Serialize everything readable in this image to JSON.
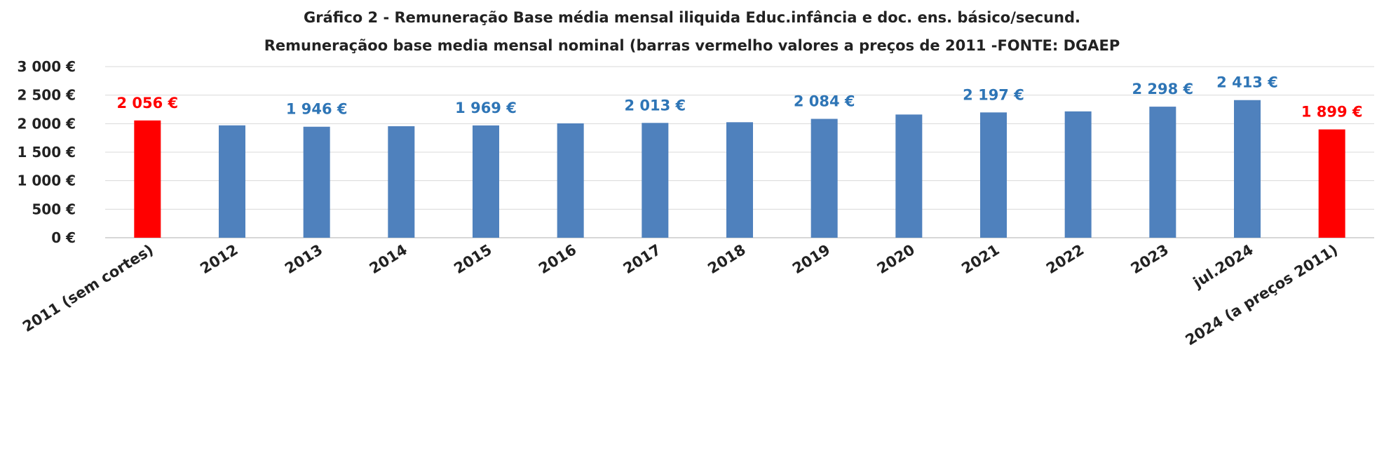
{
  "chart_data": {
    "type": "bar",
    "title": "Gráfico 2 - Remuneração  Base média mensal iliquida Educ.infância  e doc.  ens. básico/secund.",
    "subtitle": "Remuneraçãoo  base media mensal nominal (barras  vermelho valores a preços de 2011  -FONTE: DGAEP",
    "xlabel": "",
    "ylabel": "",
    "ylim": [
      0,
      3000
    ],
    "grid": true,
    "legend": "none",
    "y_ticks": [
      {
        "value": 0,
        "label": "0 €"
      },
      {
        "value": 500,
        "label": "500 €"
      },
      {
        "value": 1000,
        "label": "1 000 €"
      },
      {
        "value": 1500,
        "label": "1 500 €"
      },
      {
        "value": 2000,
        "label": "2 000 €"
      },
      {
        "value": 2500,
        "label": "2 500 €"
      },
      {
        "value": 3000,
        "label": "3 000 €"
      }
    ],
    "categories": [
      "2011 (sem cortes)",
      "2012",
      "2013",
      "2014",
      "2015",
      "2016",
      "2017",
      "2018",
      "2019",
      "2020",
      "2021",
      "2022",
      "2023",
      "jul.2024",
      "2024 (a preços 2011)"
    ],
    "values": [
      2056,
      1970,
      1946,
      1955,
      1969,
      2005,
      2013,
      2025,
      2084,
      2160,
      2197,
      2215,
      2298,
      2413,
      1899
    ],
    "bar_colors": [
      "#ff0000",
      "#4f81bd",
      "#4f81bd",
      "#4f81bd",
      "#4f81bd",
      "#4f81bd",
      "#4f81bd",
      "#4f81bd",
      "#4f81bd",
      "#4f81bd",
      "#4f81bd",
      "#4f81bd",
      "#4f81bd",
      "#4f81bd",
      "#ff0000"
    ],
    "data_labels": [
      "2 056 €",
      null,
      "1 946 €",
      null,
      "1 969 €",
      null,
      "2 013 €",
      null,
      "2 084 €",
      null,
      "2 197 €",
      null,
      "2 298 €",
      "2 413 €",
      "1 899 €"
    ],
    "data_label_colors": [
      "#ff0000",
      null,
      "#2e75b6",
      null,
      "#2e75b6",
      null,
      "#2e75b6",
      null,
      "#2e75b6",
      null,
      "#2e75b6",
      null,
      "#2e75b6",
      "#2e75b6",
      "#ff0000"
    ]
  }
}
